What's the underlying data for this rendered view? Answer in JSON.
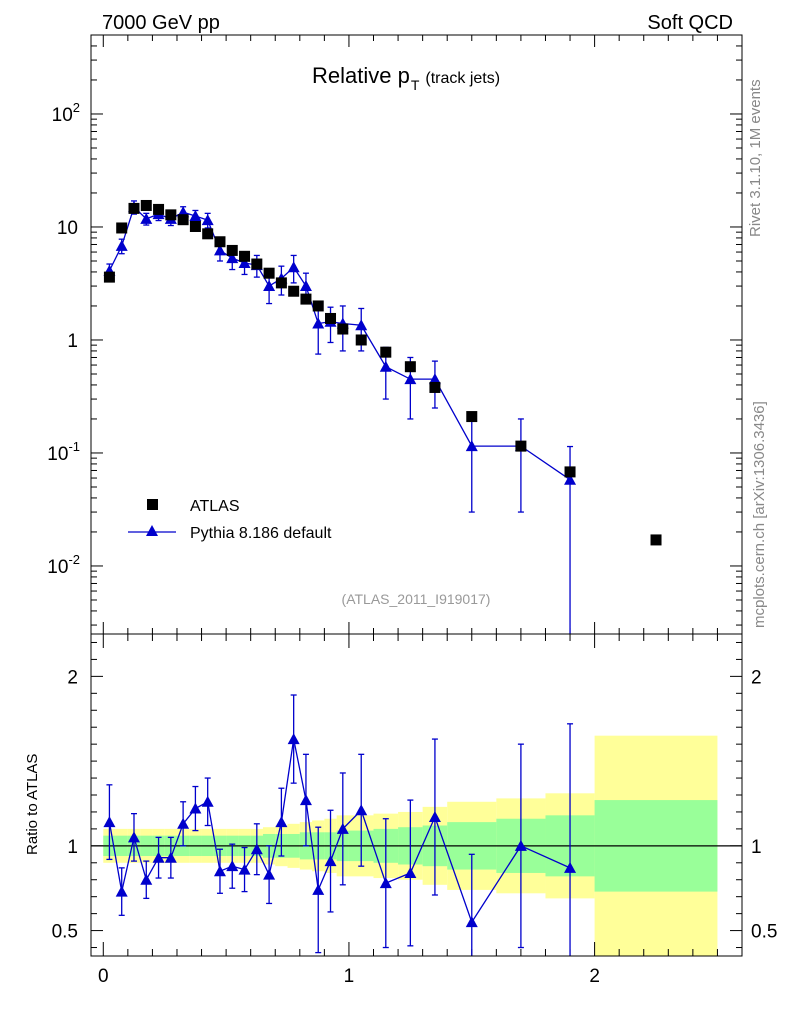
{
  "header": {
    "left_title": "7000 GeV pp",
    "right_title": "Soft QCD"
  },
  "side_text": {
    "rivet": "Rivet 3.1.10,  1M events",
    "mcplots": "mcplots.cern.ch [arXiv:1306.3436]"
  },
  "chart_data": {
    "type": "scatter",
    "title": "Relative p_T (track jets)",
    "title_main": "Relative p",
    "title_sub": "T",
    "title_extra": "(track jets)",
    "analysis_label": "(ATLAS_2011_I919017)",
    "colors": {
      "data": "#000000",
      "mc": "#0000cc",
      "band_stat": "#99ff99",
      "band_total": "#ffff99"
    },
    "top_panel": {
      "yscale": "log",
      "ylim": [
        0.0025,
        500
      ],
      "xlim": [
        -0.05,
        2.6
      ],
      "y_tick_labels": [
        "10^-2",
        "10^-1",
        "1",
        "10",
        "10^2"
      ],
      "legend": {
        "data_label": "ATLAS",
        "mc_label": "Pythia 8.186 default",
        "placement": "lower-left"
      },
      "series": [
        {
          "name": "ATLAS",
          "marker": "square",
          "x": [
            0.025,
            0.075,
            0.125,
            0.175,
            0.225,
            0.275,
            0.325,
            0.375,
            0.425,
            0.475,
            0.525,
            0.575,
            0.625,
            0.675,
            0.725,
            0.775,
            0.825,
            0.875,
            0.925,
            0.975,
            1.05,
            1.15,
            1.25,
            1.35,
            1.5,
            1.7,
            1.9,
            2.25
          ],
          "y": [
            3.6,
            9.8,
            14.6,
            15.5,
            14.3,
            12.8,
            11.6,
            10.1,
            8.7,
            7.4,
            6.2,
            5.5,
            4.7,
            3.9,
            3.2,
            2.7,
            2.3,
            2.0,
            1.55,
            1.25,
            1.0,
            0.78,
            0.58,
            0.38,
            0.21,
            0.115,
            0.068,
            0.017
          ]
        },
        {
          "name": "Pythia 8.186 default",
          "marker": "triangle",
          "x": [
            0.025,
            0.075,
            0.125,
            0.175,
            0.225,
            0.275,
            0.325,
            0.375,
            0.425,
            0.475,
            0.525,
            0.575,
            0.625,
            0.675,
            0.725,
            0.775,
            0.825,
            0.875,
            0.925,
            0.975,
            1.05,
            1.15,
            1.25,
            1.35,
            1.5,
            1.7,
            1.9
          ],
          "y": [
            4.1,
            6.8,
            15.0,
            11.8,
            13.0,
            11.8,
            13.5,
            12.5,
            11.5,
            6.2,
            5.3,
            4.8,
            4.6,
            3.0,
            3.5,
            4.4,
            3.0,
            1.4,
            1.45,
            1.4,
            1.35,
            0.58,
            0.45,
            0.45,
            0.115,
            0.115,
            0.058
          ],
          "err_lo": [
            0.6,
            1.0,
            2.0,
            1.4,
            1.6,
            1.5,
            1.6,
            1.5,
            1.7,
            1.2,
            1.1,
            1.0,
            1.0,
            0.9,
            1.0,
            1.2,
            0.9,
            0.65,
            0.5,
            0.6,
            0.55,
            0.28,
            0.25,
            0.2,
            0.085,
            0.085,
            0.056
          ],
          "err_hi": [
            0.6,
            1.0,
            2.0,
            1.4,
            1.6,
            1.5,
            1.6,
            1.5,
            1.7,
            1.2,
            1.1,
            1.0,
            1.0,
            0.9,
            1.0,
            1.2,
            0.9,
            0.65,
            0.5,
            0.6,
            0.55,
            0.28,
            0.25,
            0.2,
            0.085,
            0.085,
            0.056
          ]
        }
      ]
    },
    "ratio_panel": {
      "ylabel": "Ratio to ATLAS",
      "ylim": [
        0.35,
        2.25
      ],
      "y_tick_labels": [
        "0.5",
        "1",
        "2"
      ],
      "x_tick_labels": [
        "0",
        "1",
        "2"
      ],
      "bands": {
        "x_edges": [
          0.0,
          0.05,
          0.1,
          0.15,
          0.2,
          0.25,
          0.3,
          0.35,
          0.4,
          0.45,
          0.5,
          0.55,
          0.6,
          0.65,
          0.7,
          0.75,
          0.8,
          0.85,
          0.9,
          0.95,
          1.0,
          1.1,
          1.2,
          1.3,
          1.4,
          1.6,
          1.8,
          2.0,
          2.5
        ],
        "stat_half": [
          0.06,
          0.06,
          0.06,
          0.06,
          0.06,
          0.06,
          0.06,
          0.06,
          0.06,
          0.06,
          0.06,
          0.06,
          0.06,
          0.07,
          0.07,
          0.07,
          0.08,
          0.08,
          0.08,
          0.09,
          0.09,
          0.1,
          0.11,
          0.12,
          0.14,
          0.16,
          0.18,
          0.27
        ],
        "total_half": [
          0.1,
          0.1,
          0.1,
          0.1,
          0.1,
          0.1,
          0.1,
          0.1,
          0.1,
          0.1,
          0.1,
          0.1,
          0.1,
          0.11,
          0.12,
          0.13,
          0.14,
          0.15,
          0.16,
          0.18,
          0.18,
          0.19,
          0.2,
          0.23,
          0.26,
          0.28,
          0.31,
          0.65
        ]
      },
      "series": {
        "name": "Pythia 8.186 default / ATLAS",
        "x": [
          0.025,
          0.075,
          0.125,
          0.175,
          0.225,
          0.275,
          0.325,
          0.375,
          0.425,
          0.475,
          0.525,
          0.575,
          0.625,
          0.675,
          0.725,
          0.775,
          0.825,
          0.875,
          0.925,
          0.975,
          1.05,
          1.15,
          1.25,
          1.35,
          1.5,
          1.7,
          1.9
        ],
        "y": [
          1.14,
          0.73,
          1.05,
          0.8,
          0.93,
          0.93,
          1.13,
          1.22,
          1.26,
          0.85,
          0.88,
          0.86,
          0.98,
          0.83,
          1.14,
          1.63,
          1.27,
          0.74,
          0.91,
          1.1,
          1.21,
          0.78,
          0.84,
          1.17,
          0.55,
          1.0,
          0.87
        ],
        "err_lo": [
          0.22,
          0.14,
          0.14,
          0.11,
          0.12,
          0.12,
          0.13,
          0.13,
          0.14,
          0.13,
          0.13,
          0.13,
          0.15,
          0.17,
          0.2,
          0.26,
          0.27,
          0.37,
          0.3,
          0.33,
          0.33,
          0.38,
          0.43,
          0.46,
          0.35,
          0.6,
          0.85
        ],
        "err_hi": [
          0.22,
          0.14,
          0.14,
          0.11,
          0.12,
          0.12,
          0.13,
          0.13,
          0.14,
          0.13,
          0.13,
          0.13,
          0.15,
          0.17,
          0.2,
          0.26,
          0.27,
          0.37,
          0.3,
          0.33,
          0.33,
          0.38,
          0.43,
          0.46,
          0.4,
          0.6,
          0.85
        ]
      }
    }
  }
}
